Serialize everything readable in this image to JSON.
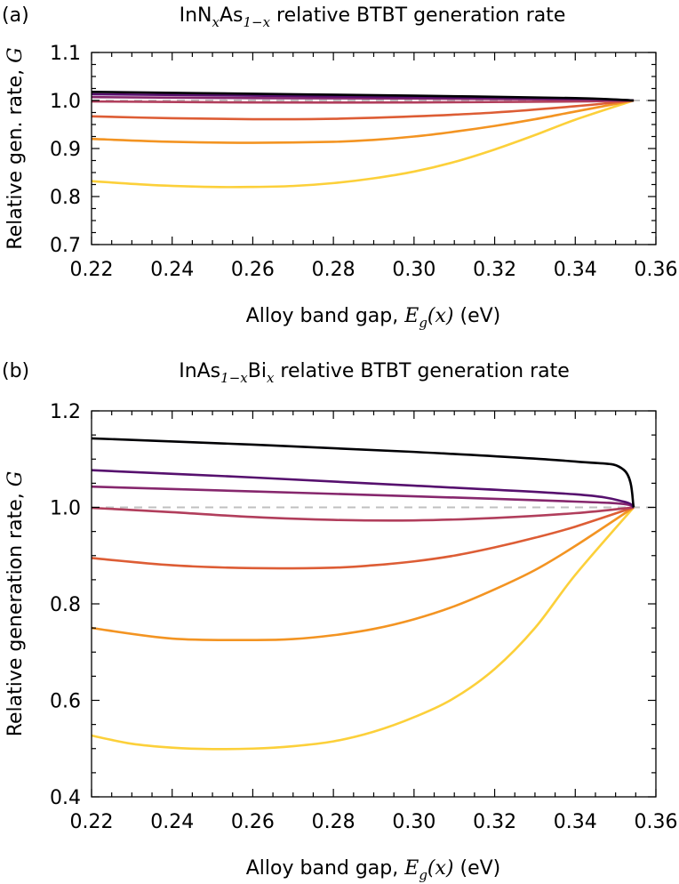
{
  "figure": {
    "panel_a": {
      "letter": "(a)",
      "title": {
        "p1": "InN",
        "sub1": "x",
        "p2": "As",
        "sub2": "1−x",
        "p3": " relative BTBT generation rate"
      },
      "xlabel": {
        "text": "Alloy band gap, ",
        "math": "E",
        "math_sub": "g",
        "math_arg": "(x)",
        "unit": " (eV)"
      },
      "ylabel": {
        "text": "Relative gen. rate, ",
        "math": "G"
      }
    },
    "panel_b": {
      "letter": "(b)",
      "title": {
        "p1": "InAs",
        "sub1": "1−x",
        "p2": "Bi",
        "sub2": "x",
        "p3": " relative BTBT generation rate"
      },
      "xlabel": {
        "text": "Alloy band gap, ",
        "math": "E",
        "math_sub": "g",
        "math_arg": "(x)",
        "unit": " (eV)"
      },
      "ylabel": {
        "text": "Relative generation rate, ",
        "math": "G"
      }
    }
  },
  "chart_data": [
    {
      "type": "line",
      "panel": "a",
      "xlim": [
        0.22,
        0.36
      ],
      "ylim": [
        0.7,
        1.1
      ],
      "xticks": [
        "0.22",
        "0.24",
        "0.26",
        "0.28",
        "0.30",
        "0.32",
        "0.34",
        "0.36"
      ],
      "yticks": [
        "0.7",
        "0.8",
        "0.9",
        "1.0",
        "1.1"
      ],
      "xtick_values": [
        0.22,
        0.24,
        0.26,
        0.28,
        0.3,
        0.32,
        0.34,
        0.36
      ],
      "ytick_values": [
        0.7,
        0.8,
        0.9,
        1.0,
        1.1
      ],
      "grid": false,
      "reference_line": {
        "y": 1.0,
        "color": "#c0c0c0",
        "style": "dashed"
      },
      "series": [
        {
          "color": "#fcd03a",
          "x": [
            0.22,
            0.235,
            0.25,
            0.26,
            0.27,
            0.28,
            0.29,
            0.3,
            0.31,
            0.32,
            0.33,
            0.34,
            0.3545
          ],
          "y": [
            0.832,
            0.824,
            0.82,
            0.82,
            0.822,
            0.828,
            0.838,
            0.852,
            0.872,
            0.898,
            0.928,
            0.96,
            1.0
          ]
        },
        {
          "color": "#f39422",
          "x": [
            0.22,
            0.24,
            0.26,
            0.28,
            0.29,
            0.3,
            0.31,
            0.32,
            0.33,
            0.34,
            0.3545
          ],
          "y": [
            0.92,
            0.914,
            0.912,
            0.914,
            0.918,
            0.925,
            0.935,
            0.947,
            0.961,
            0.977,
            1.0
          ]
        },
        {
          "color": "#dd5d35",
          "x": [
            0.22,
            0.24,
            0.26,
            0.28,
            0.3,
            0.32,
            0.34,
            0.3545
          ],
          "y": [
            0.967,
            0.963,
            0.961,
            0.962,
            0.967,
            0.975,
            0.988,
            1.0
          ]
        },
        {
          "color": "#b13e5c",
          "x": [
            0.22,
            0.26,
            0.3,
            0.34,
            0.3545
          ],
          "y": [
            0.998,
            0.996,
            0.996,
            0.998,
            1.0
          ]
        },
        {
          "color": "#86276d",
          "x": [
            0.22,
            0.26,
            0.3,
            0.34,
            0.3545
          ],
          "y": [
            1.007,
            1.005,
            1.004,
            1.002,
            1.0
          ]
        },
        {
          "color": "#56106e",
          "x": [
            0.22,
            0.26,
            0.3,
            0.34,
            0.3545
          ],
          "y": [
            1.013,
            1.01,
            1.007,
            1.004,
            1.0
          ]
        },
        {
          "color": "#000004",
          "x": [
            0.22,
            0.26,
            0.3,
            0.34,
            0.3545
          ],
          "y": [
            1.018,
            1.014,
            1.01,
            1.005,
            1.0
          ]
        }
      ]
    },
    {
      "type": "line",
      "panel": "b",
      "xlim": [
        0.22,
        0.36
      ],
      "ylim": [
        0.4,
        1.2
      ],
      "xticks": [
        "0.22",
        "0.24",
        "0.26",
        "0.28",
        "0.30",
        "0.32",
        "0.34",
        "0.36"
      ],
      "yticks": [
        "0.4",
        "0.6",
        "0.8",
        "1.0",
        "1.2"
      ],
      "xtick_values": [
        0.22,
        0.24,
        0.26,
        0.28,
        0.3,
        0.32,
        0.34,
        0.36
      ],
      "ytick_values": [
        0.4,
        0.6,
        0.8,
        1.0,
        1.2
      ],
      "grid": false,
      "reference_line": {
        "y": 1.0,
        "color": "#c0c0c0",
        "style": "dashed"
      },
      "series": [
        {
          "color": "#fcd03a",
          "x": [
            0.22,
            0.23,
            0.24,
            0.25,
            0.26,
            0.27,
            0.28,
            0.29,
            0.3,
            0.31,
            0.32,
            0.33,
            0.34,
            0.3545
          ],
          "y": [
            0.527,
            0.51,
            0.502,
            0.499,
            0.5,
            0.505,
            0.515,
            0.535,
            0.565,
            0.605,
            0.665,
            0.75,
            0.86,
            1.0
          ]
        },
        {
          "color": "#f39422",
          "x": [
            0.22,
            0.24,
            0.26,
            0.27,
            0.28,
            0.29,
            0.3,
            0.31,
            0.32,
            0.33,
            0.34,
            0.3545
          ],
          "y": [
            0.75,
            0.728,
            0.725,
            0.727,
            0.735,
            0.748,
            0.768,
            0.795,
            0.83,
            0.87,
            0.92,
            1.0
          ]
        },
        {
          "color": "#dd5d35",
          "x": [
            0.22,
            0.24,
            0.26,
            0.28,
            0.29,
            0.3,
            0.31,
            0.32,
            0.33,
            0.34,
            0.3545
          ],
          "y": [
            0.895,
            0.88,
            0.874,
            0.875,
            0.88,
            0.888,
            0.9,
            0.917,
            0.937,
            0.96,
            1.0
          ]
        },
        {
          "color": "#b13e5c",
          "x": [
            0.22,
            0.24,
            0.26,
            0.28,
            0.3,
            0.32,
            0.34,
            0.3545
          ],
          "y": [
            0.999,
            0.99,
            0.98,
            0.974,
            0.973,
            0.978,
            0.988,
            1.0
          ]
        },
        {
          "color": "#86276d",
          "x": [
            0.22,
            0.26,
            0.3,
            0.34,
            0.352,
            0.3545
          ],
          "y": [
            1.043,
            1.033,
            1.023,
            1.012,
            1.007,
            1.0
          ]
        },
        {
          "color": "#56106e",
          "x": [
            0.22,
            0.26,
            0.3,
            0.34,
            0.352,
            0.3545
          ],
          "y": [
            1.077,
            1.062,
            1.045,
            1.027,
            1.012,
            1.0
          ]
        },
        {
          "color": "#000004",
          "x": [
            0.22,
            0.26,
            0.3,
            0.34,
            0.352,
            0.3545
          ],
          "y": [
            1.143,
            1.13,
            1.115,
            1.095,
            1.078,
            1.0
          ]
        }
      ]
    }
  ]
}
